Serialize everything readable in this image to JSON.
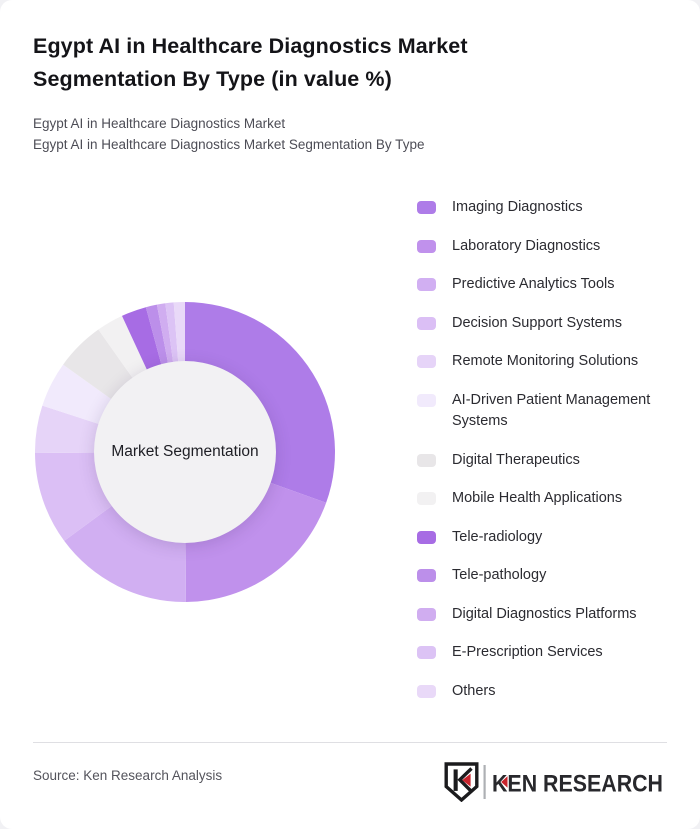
{
  "header": {
    "title": "Egypt AI in Healthcare Diagnostics Market Segmentation By Type (in value %)",
    "subtitle_line1": "Egypt AI in Healthcare Diagnostics Market",
    "subtitle_line2": "Egypt AI in Healthcare Diagnostics Market Segmentation By Type"
  },
  "chart_data": {
    "type": "pie",
    "style": "donut",
    "center_label": "Market Segmentation",
    "unit": "value %",
    "legend_position": "right",
    "start_angle_deg": 0,
    "direction": "clockwise",
    "values_labeled_on_chart": false,
    "series": [
      {
        "name": "Imaging Diagnostics",
        "value": 30.5,
        "color": "#ae7ce8"
      },
      {
        "name": "Laboratory Diagnostics",
        "value": 19.4,
        "color": "#c091ec"
      },
      {
        "name": "Predictive Analytics Tools",
        "value": 15.0,
        "color": "#d1aff2"
      },
      {
        "name": "Decision Support Systems",
        "value": 10.0,
        "color": "#dbbff5"
      },
      {
        "name": "Remote Monitoring Solutions",
        "value": 5.1,
        "color": "#e6d4f8"
      },
      {
        "name": "AI-Driven Patient Management Systems",
        "value": 4.9,
        "color": "#f1eafc"
      },
      {
        "name": "Digital Therapeutics",
        "value": 5.3,
        "color": "#e8e6e8"
      },
      {
        "name": "Mobile Health Applications",
        "value": 2.9,
        "color": "#f2f1f2"
      },
      {
        "name": "Tele-radiology",
        "value": 2.7,
        "color": "#a76ce4"
      },
      {
        "name": "Tele-pathology",
        "value": 1.2,
        "color": "#bc8fea"
      },
      {
        "name": "Digital Diagnostics Platforms",
        "value": 0.9,
        "color": "#d0adf0"
      },
      {
        "name": "E-Prescription Services",
        "value": 0.9,
        "color": "#dcc3f5"
      },
      {
        "name": "Others",
        "value": 1.2,
        "color": "#e9d9f8"
      }
    ]
  },
  "footer": {
    "source": "Source: Ken Research Analysis",
    "logo": {
      "brand": "KEN RESEARCH",
      "monogram": "K",
      "accent_color": "#c8232c",
      "text_color": "#28282c"
    }
  }
}
